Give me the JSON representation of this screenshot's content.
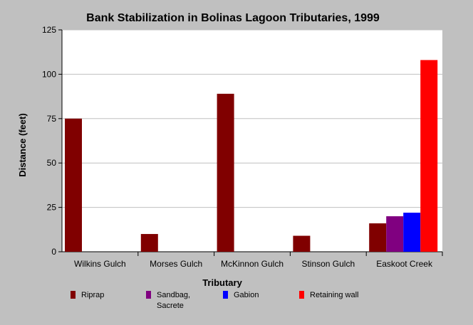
{
  "chart_data": {
    "type": "bar",
    "title": "Bank Stabilization in Bolinas Lagoon Tributaries, 1999",
    "xlabel": "Tributary",
    "ylabel": "Distance (feet)",
    "ylim": [
      0,
      125
    ],
    "yticks": [
      0,
      25,
      50,
      75,
      100,
      125
    ],
    "grid": true,
    "legend_position": "bottom",
    "categories": [
      "Wilkins Gulch",
      "Morses Gulch",
      "McKinnon Gulch",
      "Stinson Gulch",
      "Easkoot Creek"
    ],
    "series": [
      {
        "name": "Riprap",
        "color": "#800000",
        "values": [
          75,
          10,
          89,
          9,
          16
        ]
      },
      {
        "name": "Sandbag, Sacrete",
        "legend_lines": [
          "Sandbag,",
          "Sacrete"
        ],
        "color": "#800080",
        "values": [
          0,
          0,
          0,
          0,
          20
        ]
      },
      {
        "name": "Gabion",
        "color": "#0000ff",
        "values": [
          0,
          0,
          0,
          0,
          22
        ]
      },
      {
        "name": "Retaining wall",
        "color": "#ff0000",
        "values": [
          0,
          0,
          0,
          0,
          108
        ]
      }
    ]
  }
}
